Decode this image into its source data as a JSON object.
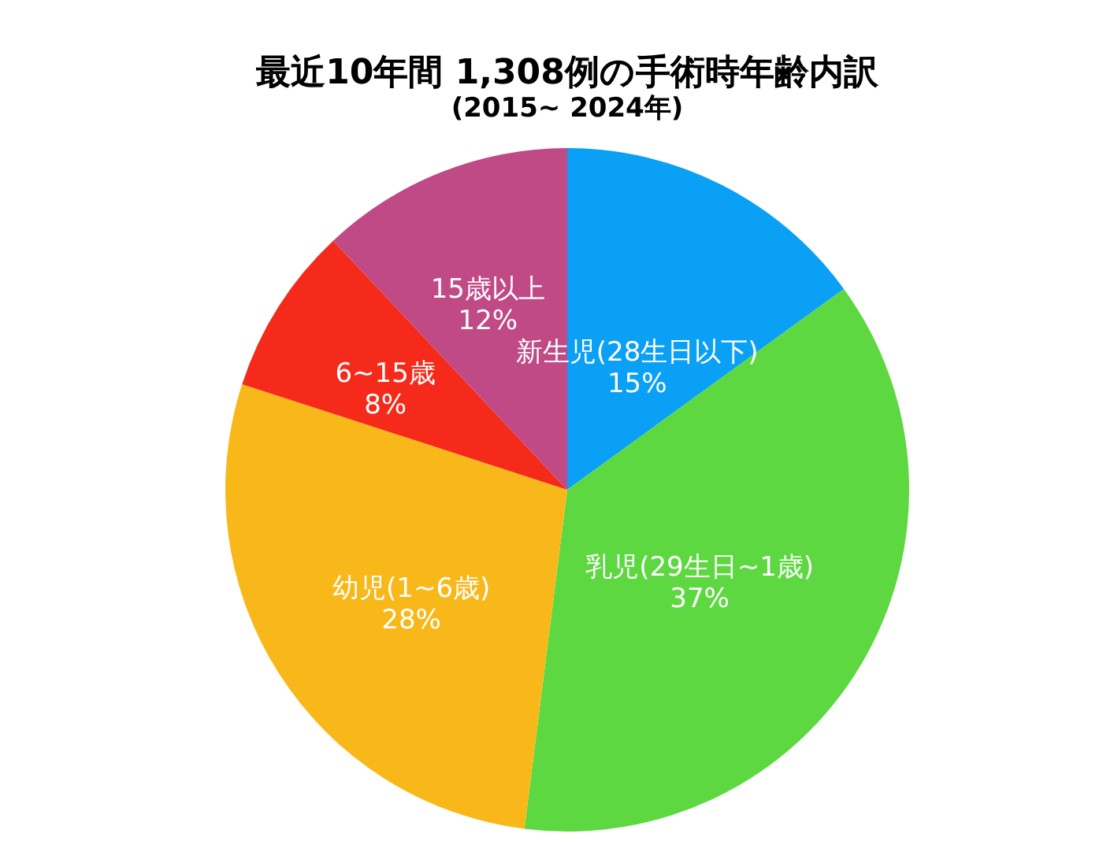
{
  "chart_data": {
    "type": "pie",
    "title": "最近10年間 1,308例の手術時年齢内訳",
    "subtitle": "(2015~ 2024年)",
    "categories": [
      "新生児(28生日以下)",
      "乳児(29生日~1歳)",
      "幼児(1~6歳)",
      "6~15歳",
      "15歳以上"
    ],
    "values": [
      15,
      37,
      28,
      8,
      12
    ],
    "colors": [
      "#0aa0f5",
      "#5dd840",
      "#f8b81a",
      "#f52a1a",
      "#c04a86"
    ],
    "value_labels": [
      "15%",
      "37%",
      "28%",
      "8%",
      "12%"
    ]
  }
}
